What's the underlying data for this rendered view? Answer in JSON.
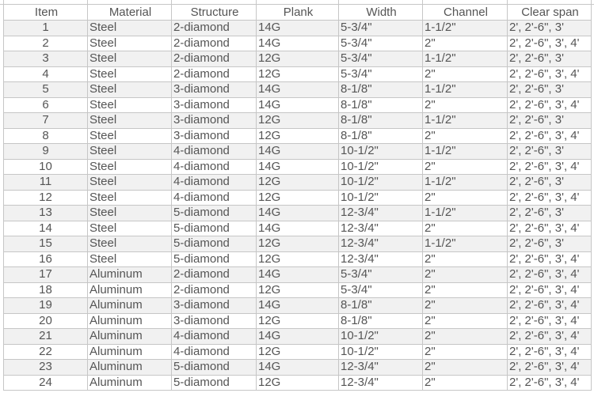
{
  "headers": [
    "Item",
    "Material",
    "Structure",
    "Plank",
    "Width",
    "Channel",
    "Clear span"
  ],
  "rows": [
    [
      "1",
      "Steel",
      "2-diamond",
      "14G",
      "5-3/4\"",
      "1-1/2\"",
      "2', 2'-6\", 3'"
    ],
    [
      "2",
      "Steel",
      "2-diamond",
      "14G",
      "5-3/4\"",
      "2\"",
      "2', 2'-6\", 3', 4'"
    ],
    [
      "3",
      "Steel",
      "2-diamond",
      "12G",
      "5-3/4\"",
      "1-1/2\"",
      "2', 2'-6\", 3'"
    ],
    [
      "4",
      "Steel",
      "2-diamond",
      "12G",
      "5-3/4\"",
      "2\"",
      "2', 2'-6\", 3', 4'"
    ],
    [
      "5",
      "Steel",
      "3-diamond",
      "14G",
      "8-1/8\"",
      "1-1/2\"",
      "2', 2'-6\", 3'"
    ],
    [
      "6",
      "Steel",
      "3-diamond",
      "14G",
      "8-1/8\"",
      "2\"",
      "2', 2'-6\", 3', 4'"
    ],
    [
      "7",
      "Steel",
      "3-diamond",
      "12G",
      "8-1/8\"",
      "1-1/2\"",
      "2', 2'-6\", 3'"
    ],
    [
      "8",
      "Steel",
      "3-diamond",
      "12G",
      "8-1/8\"",
      "2\"",
      "2', 2'-6\", 3', 4'"
    ],
    [
      "9",
      "Steel",
      "4-diamond",
      "14G",
      "10-1/2\"",
      "1-1/2\"",
      "2', 2'-6\", 3'"
    ],
    [
      "10",
      "Steel",
      "4-diamond",
      "14G",
      "10-1/2\"",
      "2\"",
      "2', 2'-6\", 3', 4'"
    ],
    [
      "11",
      "Steel",
      "4-diamond",
      "12G",
      "10-1/2\"",
      "1-1/2\"",
      "2', 2'-6\", 3'"
    ],
    [
      "12",
      "Steel",
      "4-diamond",
      "12G",
      "10-1/2\"",
      "2\"",
      "2', 2'-6\", 3', 4'"
    ],
    [
      "13",
      "Steel",
      "5-diamond",
      "14G",
      "12-3/4\"",
      "1-1/2\"",
      "2', 2'-6\", 3'"
    ],
    [
      "14",
      "Steel",
      "5-diamond",
      "14G",
      "12-3/4\"",
      "2\"",
      "2', 2'-6\", 3', 4'"
    ],
    [
      "15",
      "Steel",
      "5-diamond",
      "12G",
      "12-3/4\"",
      "1-1/2\"",
      "2', 2'-6\", 3'"
    ],
    [
      "16",
      "Steel",
      "5-diamond",
      "12G",
      "12-3/4\"",
      "2\"",
      "2', 2'-6\", 3', 4'"
    ],
    [
      "17",
      "Aluminum",
      "2-diamond",
      "14G",
      "5-3/4\"",
      "2\"",
      "2', 2'-6\", 3', 4'"
    ],
    [
      "18",
      "Aluminum",
      "2-diamond",
      "12G",
      "5-3/4\"",
      "2\"",
      "2', 2'-6\", 3', 4'"
    ],
    [
      "19",
      "Aluminum",
      "3-diamond",
      "14G",
      "8-1/8\"",
      "2\"",
      "2', 2'-6\", 3', 4'"
    ],
    [
      "20",
      "Aluminum",
      "3-diamond",
      "12G",
      "8-1/8\"",
      "2\"",
      "2', 2'-6\", 3', 4'"
    ],
    [
      "21",
      "Aluminum",
      "4-diamond",
      "14G",
      "10-1/2\"",
      "2\"",
      "2', 2'-6\", 3', 4'"
    ],
    [
      "22",
      "Aluminum",
      "4-diamond",
      "12G",
      "10-1/2\"",
      "2\"",
      "2', 2'-6\", 3', 4'"
    ],
    [
      "23",
      "Aluminum",
      "5-diamond",
      "14G",
      "12-3/4\"",
      "2\"",
      "2', 2'-6\", 3', 4'"
    ],
    [
      "24",
      "Aluminum",
      "5-diamond",
      "12G",
      "12-3/4\"",
      "2\"",
      "2', 2'-6\", 3', 4'"
    ]
  ]
}
